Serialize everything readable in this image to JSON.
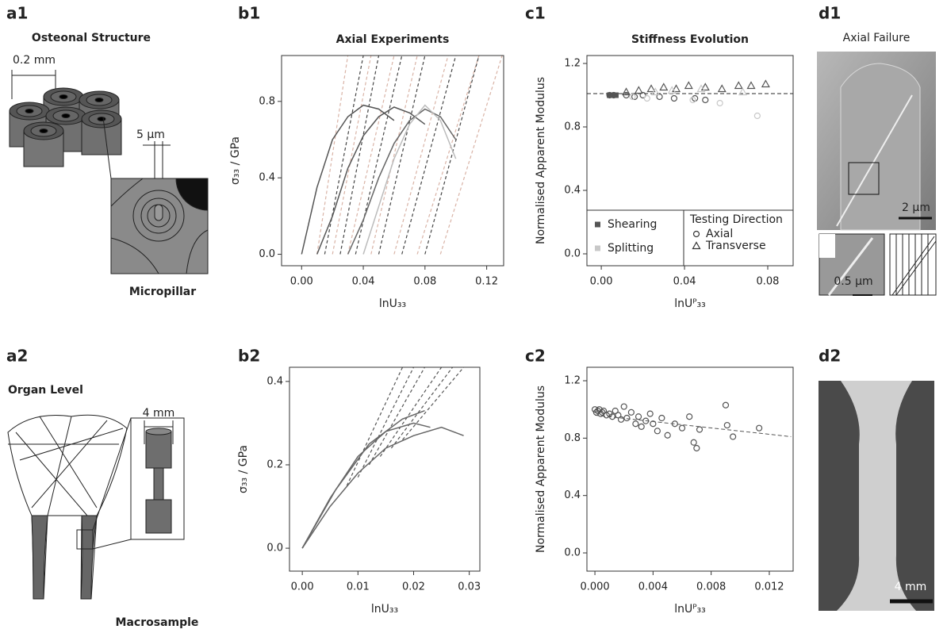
{
  "panel_labels": [
    "a1",
    "b1",
    "c1",
    "d1",
    "a2",
    "b2",
    "c2",
    "d2"
  ],
  "a1": {
    "title": "Osteonal Structure",
    "scale_osteon": "0.2 mm",
    "scale_pillar": "5 µm",
    "caption": "Micropillar"
  },
  "a2": {
    "title": "Organ Level",
    "scale": "4 mm",
    "caption": "Macrosample"
  },
  "d1": {
    "title": "Axial Failure",
    "scale": "2 µm",
    "inset_scale": "0.5 µm"
  },
  "d2": {
    "scale": "4 mm"
  },
  "chart_data": [
    {
      "type": "line",
      "title": "Axial Experiments",
      "xlabel": "lnU₃₃",
      "ylabel": "σ₃₃ / GPa",
      "xlim": [
        -0.013,
        0.131
      ],
      "ylim": [
        -0.06,
        1.04
      ],
      "xticks": [
        {
          "value": 0,
          "label": "0.00"
        },
        0.04,
        0.08,
        0.12
      ],
      "yticks": [
        {
          "value": 0,
          "label": "0.0"
        },
        0.4,
        0.8
      ],
      "series": [
        {
          "color": "#d9b3a6",
          "dash": true,
          "x": [
            0.01,
            0.03,
            null,
            0.02,
            0.045,
            null,
            0.03,
            0.06,
            null,
            0.045,
            0.075,
            null,
            0.06,
            0.095,
            null,
            0.075,
            0.115,
            null,
            0.09,
            0.13
          ],
          "values": [
            0,
            1.04,
            null,
            0,
            1.04,
            null,
            0,
            1.04,
            null,
            0,
            1.04,
            null,
            0,
            1.04,
            null,
            0,
            1.04,
            null,
            0,
            1.04
          ]
        },
        {
          "color": "#444444",
          "dash": true,
          "x": [
            0.015,
            0.04,
            null,
            0.025,
            0.05,
            null,
            0.035,
            0.065,
            null,
            0.05,
            0.08,
            null,
            0.065,
            0.1,
            null,
            0.08,
            0.115
          ],
          "values": [
            0,
            1.04,
            null,
            0,
            1.04,
            null,
            0,
            1.04,
            null,
            0,
            1.04,
            null,
            0,
            1.04,
            null,
            0,
            1.04
          ]
        },
        {
          "color": "#555555",
          "dash": false,
          "x": [
            0,
            0.01,
            0.02,
            0.03,
            0.04,
            0.05,
            0.06
          ],
          "values": [
            0,
            0.35,
            0.6,
            0.72,
            0.78,
            0.76,
            0.7
          ]
        },
        {
          "color": "#555555",
          "dash": false,
          "x": [
            0.01,
            0.02,
            0.03,
            0.04,
            0.05,
            0.06,
            0.07,
            0.08
          ],
          "values": [
            0,
            0.2,
            0.45,
            0.62,
            0.72,
            0.77,
            0.74,
            0.68
          ]
        },
        {
          "color": "#666666",
          "dash": false,
          "x": [
            0.03,
            0.04,
            0.05,
            0.06,
            0.07,
            0.08,
            0.09,
            0.1
          ],
          "values": [
            0,
            0.18,
            0.4,
            0.58,
            0.7,
            0.76,
            0.72,
            0.6
          ]
        },
        {
          "color": "#bbbbbb",
          "dash": false,
          "x": [
            0.04,
            0.05,
            0.06,
            0.07,
            0.08,
            0.09,
            0.1
          ],
          "values": [
            0,
            0.25,
            0.5,
            0.68,
            0.78,
            0.7,
            0.5
          ]
        }
      ]
    },
    {
      "type": "line",
      "xlabel": "lnU₃₃",
      "ylabel": "σ₃₃ / GPa",
      "xlim": [
        -0.0023,
        0.0319
      ],
      "ylim": [
        -0.055,
        0.434
      ],
      "xticks": [
        {
          "value": 0,
          "label": "0.00"
        },
        0.01,
        0.02,
        0.03
      ],
      "yticks": [
        {
          "value": 0,
          "label": "0.0"
        },
        0.2,
        0.4
      ],
      "series": [
        {
          "color": "#555555",
          "dash": true,
          "x": [
            0.008,
            0.018,
            null,
            0.01,
            0.02,
            null,
            0.012,
            0.022,
            null,
            0.014,
            0.025,
            null,
            0.016,
            0.027,
            null,
            0.018,
            0.029
          ],
          "values": [
            0.15,
            0.434,
            null,
            0.17,
            0.434,
            null,
            0.2,
            0.434,
            null,
            0.22,
            0.434,
            null,
            0.24,
            0.434,
            null,
            0.26,
            0.434
          ]
        },
        {
          "color": "#666666",
          "dash": false,
          "x": [
            0,
            0.005,
            0.01,
            0.015,
            0.02,
            0.025,
            0.029
          ],
          "values": [
            0,
            0.1,
            0.18,
            0.24,
            0.27,
            0.29,
            0.27
          ]
        },
        {
          "color": "#666666",
          "dash": false,
          "x": [
            0,
            0.005,
            0.01,
            0.015,
            0.02,
            0.023
          ],
          "values": [
            0,
            0.12,
            0.22,
            0.28,
            0.3,
            0.29
          ]
        },
        {
          "color": "#666666",
          "dash": false,
          "x": [
            0,
            0.006,
            0.012,
            0.018,
            0.022
          ],
          "values": [
            0,
            0.14,
            0.25,
            0.31,
            0.33
          ]
        }
      ]
    },
    {
      "type": "scatter",
      "title": "Stiffness Evolution",
      "xlabel": "lnUᴾ₃₃",
      "ylabel": "Normalised Apparent Modulus",
      "xlim": [
        -0.0069,
        0.0922
      ],
      "ylim": [
        -0.075,
        1.25
      ],
      "xticks": [
        {
          "value": 0,
          "label": "0.00"
        },
        0.04,
        0.08
      ],
      "yticks": [
        {
          "value": 0,
          "label": "0.0"
        },
        0.4,
        0.8,
        1.2
      ],
      "reference_line": 1.01,
      "legend": {
        "color_entries": [
          {
            "label": "Shearing",
            "color": "#555555"
          },
          {
            "label": "Splitting",
            "color": "#c8c8c8"
          }
        ],
        "title": "Testing Direction",
        "marker_entries": [
          {
            "label": "Axial",
            "marker": "circle"
          },
          {
            "label": "Transverse",
            "marker": "triangle"
          }
        ]
      },
      "series": [
        {
          "color": "#555555",
          "marker": "square",
          "x": [
            0.004,
            0.005,
            0.006,
            0.007
          ],
          "values": [
            1,
            1,
            1,
            1
          ]
        },
        {
          "color": "#555555",
          "marker": "circle",
          "x": [
            0.004,
            0.006,
            0.012,
            0.016,
            0.02,
            0.028,
            0.035,
            0.045,
            0.05
          ],
          "values": [
            1,
            1,
            1,
            0.99,
            1,
            0.99,
            0.98,
            0.98,
            0.97
          ]
        },
        {
          "color": "#555555",
          "marker": "triangle",
          "x": [
            0.012,
            0.018,
            0.024,
            0.03,
            0.036,
            0.042,
            0.05,
            0.058,
            0.066,
            0.072,
            0.079
          ],
          "values": [
            1.02,
            1.03,
            1.04,
            1.05,
            1.04,
            1.06,
            1.05,
            1.04,
            1.06,
            1.06,
            1.07
          ]
        },
        {
          "color": "#c8c8c8",
          "marker": "circle",
          "x": [
            0.015,
            0.022,
            0.044,
            0.057,
            0.075
          ],
          "values": [
            0.99,
            0.98,
            0.97,
            0.95,
            0.87
          ]
        },
        {
          "color": "#c8c8c8",
          "marker": "triangle",
          "x": [
            0.026,
            0.034,
            0.048,
            0.068
          ],
          "values": [
            1.02,
            1.03,
            1.04,
            1.02
          ]
        }
      ]
    },
    {
      "type": "scatter",
      "xlabel": "lnUᴾ₃₃",
      "ylabel": "Normalised Apparent Modulus",
      "xlim": [
        -0.00055,
        0.01364
      ],
      "ylim": [
        -0.127,
        1.294
      ],
      "xticks": [
        {
          "value": 0,
          "label": "0.000"
        },
        0.004,
        0.008,
        0.012
      ],
      "yticks": [
        {
          "value": 0,
          "label": "0.0"
        },
        0.4,
        0.8,
        1.2
      ],
      "trend": {
        "x": [
          0,
          0.0135
        ],
        "values": [
          0.96,
          0.81
        ]
      },
      "series": [
        {
          "color": "#555555",
          "marker": "circle",
          "x": [
            0,
            0.0001,
            0.0002,
            0.0003,
            0.0004,
            0.0005,
            0.0006,
            0.0008,
            0.001,
            0.0012,
            0.0014,
            0.0016,
            0.0018,
            0.002,
            0.0022,
            0.0025,
            0.0028,
            0.003,
            0.0032,
            0.0035,
            0.0038,
            0.004,
            0.0043,
            0.0046,
            0.005,
            0.0055,
            0.006,
            0.0065,
            0.0068,
            0.007,
            0.0072,
            0.009,
            0.0091,
            0.0095,
            0.0113
          ],
          "values": [
            1.0,
            0.98,
            0.99,
            1.0,
            0.97,
            0.98,
            0.99,
            0.96,
            0.97,
            0.95,
            0.99,
            0.96,
            0.93,
            1.02,
            0.94,
            0.98,
            0.9,
            0.95,
            0.88,
            0.92,
            0.97,
            0.9,
            0.85,
            0.94,
            0.82,
            0.9,
            0.87,
            0.95,
            0.77,
            0.73,
            0.86,
            1.03,
            0.89,
            0.81,
            0.87
          ]
        }
      ]
    }
  ]
}
